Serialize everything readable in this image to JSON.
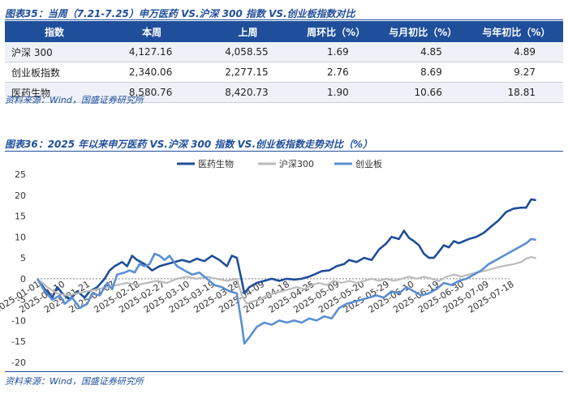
{
  "table": {
    "caption": "图表35：当周（7.21-7.25）申万医药 VS.沪深 300 指数 VS.创业板指数对比",
    "headers": [
      "指数",
      "本周",
      "上周",
      "周环比（%）",
      "与月初比（%）",
      "与年初比（%）"
    ],
    "rows": [
      [
        "沪深 300",
        "4,127.16",
        "4,058.55",
        "1.69",
        "4.85",
        "4.89"
      ],
      [
        "创业板指数",
        "2,340.06",
        "2,277.15",
        "2.76",
        "8.69",
        "9.27"
      ],
      [
        "医药生物",
        "8,580.76",
        "8,420.73",
        "1.90",
        "10.66",
        "18.81"
      ]
    ],
    "source": "资料来源：Wind，国盛证券研究所"
  },
  "chart_section": {
    "caption": "图表36：2025 年以来申万医药 VS.沪深 300 指数 VS.创业板指数走势对比（%）",
    "source": "资料来源：Wind，国盛证券研究所"
  },
  "chart_data": {
    "type": "line",
    "x": [
      "2025-01-01",
      "2025-01-10",
      "2025-01-21",
      "2025-02-07",
      "2025-02-18",
      "2025-02-27",
      "2025-03-10",
      "2025-03-19",
      "2025-03-28",
      "2025-04-09",
      "2025-04-18",
      "2025-04-25",
      "2025-05-09",
      "2025-05-20",
      "2025-05-29",
      "2025-06-10",
      "2025-06-19",
      "2025-06-30",
      "2025-07-09",
      "2025-07-18"
    ],
    "ylim": [
      -20,
      25
    ],
    "yticks": [
      -20,
      -15,
      -10,
      -5,
      0,
      5,
      10,
      15,
      20,
      25
    ],
    "legend_position": "top",
    "series": [
      {
        "name": "医药生物",
        "color": "#1f4e9a",
        "points": [
          [
            0,
            0
          ],
          [
            0.3,
            -2.5
          ],
          [
            0.6,
            -4.5
          ],
          [
            0.8,
            -2
          ],
          [
            1,
            -3.5
          ],
          [
            1.3,
            -5
          ],
          [
            1.6,
            -3
          ],
          [
            1.9,
            -4.5
          ],
          [
            2.1,
            -3
          ],
          [
            2.4,
            -2
          ],
          [
            2.7,
            0
          ],
          [
            2.9,
            2
          ],
          [
            3.1,
            3
          ],
          [
            3.4,
            4
          ],
          [
            3.6,
            3
          ],
          [
            3.8,
            5.5
          ],
          [
            4,
            4.5
          ],
          [
            4.3,
            3.5
          ],
          [
            4.6,
            2
          ],
          [
            4.9,
            3
          ],
          [
            5.2,
            3.5
          ],
          [
            5.5,
            4
          ],
          [
            5.8,
            4.5
          ],
          [
            6.1,
            4
          ],
          [
            6.4,
            4.8
          ],
          [
            6.7,
            4.2
          ],
          [
            7,
            5.5
          ],
          [
            7.3,
            4.5
          ],
          [
            7.6,
            3
          ],
          [
            7.8,
            5.5
          ],
          [
            8,
            5
          ],
          [
            8.2,
            -0.5
          ],
          [
            8.3,
            -3.5
          ],
          [
            8.5,
            -2
          ],
          [
            8.8,
            -1
          ],
          [
            9.1,
            -0.5
          ],
          [
            9.4,
            0
          ],
          [
            9.7,
            -0.5
          ],
          [
            10,
            0
          ],
          [
            10.3,
            -0.2
          ],
          [
            10.6,
            0
          ],
          [
            10.9,
            0.5
          ],
          [
            11.1,
            1
          ],
          [
            11.4,
            1.8
          ],
          [
            11.7,
            2
          ],
          [
            12,
            3
          ],
          [
            12.3,
            3.5
          ],
          [
            12.5,
            4.5
          ],
          [
            12.8,
            4
          ],
          [
            13.1,
            5
          ],
          [
            13.4,
            4.5
          ],
          [
            13.7,
            7
          ],
          [
            14,
            8.5
          ],
          [
            14.2,
            10
          ],
          [
            14.5,
            9.5
          ],
          [
            14.7,
            11.5
          ],
          [
            14.9,
            9.8
          ],
          [
            15.1,
            9
          ],
          [
            15.3,
            8
          ],
          [
            15.5,
            6
          ],
          [
            15.7,
            5
          ],
          [
            15.9,
            5
          ],
          [
            16.1,
            6.5
          ],
          [
            16.3,
            8
          ],
          [
            16.5,
            7.5
          ],
          [
            16.7,
            9
          ],
          [
            16.9,
            8.5
          ],
          [
            17.1,
            9
          ],
          [
            17.3,
            9.5
          ],
          [
            17.6,
            10
          ],
          [
            17.9,
            11
          ],
          [
            18.2,
            12.5
          ],
          [
            18.5,
            14
          ],
          [
            18.8,
            16
          ],
          [
            19.1,
            16.8
          ],
          [
            19.4,
            17
          ],
          [
            19.6,
            17
          ],
          [
            19.8,
            19
          ],
          [
            20,
            18.8
          ]
        ]
      },
      {
        "name": "沪深300",
        "color": "#bbbbbb",
        "points": [
          [
            0,
            0
          ],
          [
            0.4,
            -2
          ],
          [
            0.8,
            -3.5
          ],
          [
            1.2,
            -4
          ],
          [
            1.6,
            -3.5
          ],
          [
            2,
            -3
          ],
          [
            2.4,
            -2.5
          ],
          [
            2.8,
            -2
          ],
          [
            3.2,
            -1.5
          ],
          [
            3.6,
            -1
          ],
          [
            4,
            -1.5
          ],
          [
            4.4,
            -1
          ],
          [
            4.8,
            -0.5
          ],
          [
            5.2,
            -1
          ],
          [
            5.6,
            0
          ],
          [
            6,
            0.5
          ],
          [
            6.4,
            0
          ],
          [
            6.8,
            0.5
          ],
          [
            7.2,
            0
          ],
          [
            7.6,
            -0.5
          ],
          [
            8,
            0
          ],
          [
            8.2,
            -4
          ],
          [
            8.4,
            -6
          ],
          [
            8.6,
            -5.5
          ],
          [
            8.9,
            -5
          ],
          [
            9.2,
            -4
          ],
          [
            9.5,
            -3.5
          ],
          [
            9.8,
            -3
          ],
          [
            10.1,
            -2.5
          ],
          [
            10.4,
            -2
          ],
          [
            10.7,
            -2.5
          ],
          [
            11,
            -1.5
          ],
          [
            11.3,
            -1
          ],
          [
            11.6,
            -1.5
          ],
          [
            11.9,
            -0.5
          ],
          [
            12.2,
            -1
          ],
          [
            12.5,
            -0.5
          ],
          [
            12.8,
            -1
          ],
          [
            13.1,
            -0.5
          ],
          [
            13.4,
            0
          ],
          [
            13.7,
            -0.5
          ],
          [
            14,
            0
          ],
          [
            14.3,
            -0.5
          ],
          [
            14.6,
            0
          ],
          [
            14.9,
            0.5
          ],
          [
            15.2,
            0
          ],
          [
            15.5,
            0.5
          ],
          [
            15.8,
            0
          ],
          [
            16.1,
            -0.5
          ],
          [
            16.4,
            0.5
          ],
          [
            16.7,
            1
          ],
          [
            17,
            0.5
          ],
          [
            17.3,
            1
          ],
          [
            17.6,
            1.5
          ],
          [
            17.9,
            1.8
          ],
          [
            18.2,
            2.3
          ],
          [
            18.5,
            2.8
          ],
          [
            18.8,
            3.2
          ],
          [
            19.1,
            3.5
          ],
          [
            19.4,
            4
          ],
          [
            19.6,
            4.8
          ],
          [
            19.8,
            5.2
          ],
          [
            20,
            4.9
          ]
        ]
      },
      {
        "name": "创业板",
        "color": "#5b8fd4",
        "points": [
          [
            0,
            0
          ],
          [
            0.3,
            -3
          ],
          [
            0.6,
            -5
          ],
          [
            0.9,
            -4
          ],
          [
            1.1,
            -6
          ],
          [
            1.4,
            -4.5
          ],
          [
            1.7,
            -7
          ],
          [
            2,
            -6
          ],
          [
            2.2,
            -3.5
          ],
          [
            2.5,
            -4
          ],
          [
            2.8,
            -1
          ],
          [
            3,
            -2.5
          ],
          [
            3.2,
            1
          ],
          [
            3.5,
            1.5
          ],
          [
            3.7,
            2
          ],
          [
            3.9,
            1.5
          ],
          [
            4.1,
            3.5
          ],
          [
            4.3,
            3
          ],
          [
            4.5,
            3.5
          ],
          [
            4.7,
            6
          ],
          [
            4.9,
            5.5
          ],
          [
            5.1,
            4.5
          ],
          [
            5.3,
            5.5
          ],
          [
            5.6,
            3
          ],
          [
            5.9,
            2
          ],
          [
            6.2,
            1
          ],
          [
            6.5,
            1.5
          ],
          [
            6.8,
            0
          ],
          [
            7.1,
            -1.5
          ],
          [
            7.4,
            -2
          ],
          [
            7.7,
            -3
          ],
          [
            8,
            -3.5
          ],
          [
            8.2,
            -11
          ],
          [
            8.3,
            -15.5
          ],
          [
            8.5,
            -14
          ],
          [
            8.8,
            -11.5
          ],
          [
            9.1,
            -10.5
          ],
          [
            9.4,
            -11
          ],
          [
            9.7,
            -10
          ],
          [
            10,
            -10.5
          ],
          [
            10.3,
            -10
          ],
          [
            10.6,
            -10.5
          ],
          [
            10.9,
            -9.5
          ],
          [
            11.2,
            -10
          ],
          [
            11.5,
            -9
          ],
          [
            11.8,
            -9.5
          ],
          [
            12.1,
            -7
          ],
          [
            12.4,
            -6
          ],
          [
            12.7,
            -5.5
          ],
          [
            13,
            -5
          ],
          [
            13.3,
            -4.5
          ],
          [
            13.6,
            -4
          ],
          [
            13.9,
            -4.5
          ],
          [
            14.2,
            -3
          ],
          [
            14.5,
            -3.5
          ],
          [
            14.8,
            -2
          ],
          [
            15.1,
            -3
          ],
          [
            15.4,
            -4
          ],
          [
            15.7,
            -3.5
          ],
          [
            16,
            -2.5
          ],
          [
            16.3,
            -1
          ],
          [
            16.6,
            -1.5
          ],
          [
            16.9,
            -0.5
          ],
          [
            17.2,
            0
          ],
          [
            17.5,
            1
          ],
          [
            17.8,
            2
          ],
          [
            18.1,
            3.5
          ],
          [
            18.4,
            4.5
          ],
          [
            18.7,
            5.5
          ],
          [
            19,
            6.5
          ],
          [
            19.3,
            7.5
          ],
          [
            19.6,
            8.5
          ],
          [
            19.8,
            9.5
          ],
          [
            20,
            9.3
          ]
        ]
      }
    ]
  }
}
